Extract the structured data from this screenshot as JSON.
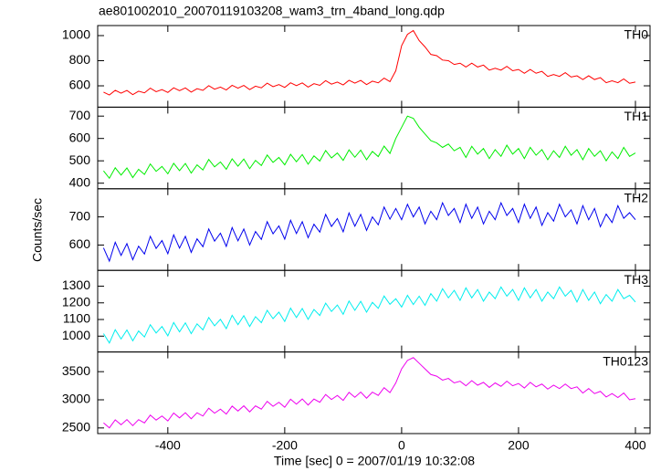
{
  "chart_data": [
    {
      "type": "line",
      "title": "ae801002010_20070119103208_wam3_trn_4band_long.qdp",
      "y_label": "Counts/sec",
      "x": [
        -510,
        -500,
        -490,
        -480,
        -470,
        -460,
        -450,
        -440,
        -430,
        -420,
        -410,
        -400,
        -390,
        -380,
        -370,
        -360,
        -350,
        -340,
        -330,
        -320,
        -310,
        -300,
        -290,
        -280,
        -270,
        -260,
        -250,
        -240,
        -230,
        -220,
        -210,
        -200,
        -190,
        -180,
        -170,
        -160,
        -150,
        -140,
        -130,
        -120,
        -110,
        -100,
        -90,
        -80,
        -70,
        -60,
        -50,
        -40,
        -30,
        -20,
        -10,
        0,
        10,
        20,
        30,
        40,
        50,
        60,
        70,
        80,
        90,
        100,
        110,
        120,
        130,
        140,
        150,
        160,
        170,
        180,
        190,
        200,
        210,
        220,
        230,
        240,
        250,
        260,
        270,
        280,
        290,
        300,
        310,
        320,
        330,
        340,
        350,
        360,
        370,
        380,
        390,
        400
      ],
      "ylim": [
        430,
        1080
      ],
      "yticks": [
        600,
        800,
        1000
      ],
      "series": [
        {
          "name": "TH0",
          "color": "#ff0000",
          "values": [
            550,
            527,
            564,
            541,
            563,
            530,
            557,
            544,
            581,
            553,
            570,
            547,
            584,
            561,
            583,
            550,
            577,
            564,
            601,
            573,
            590,
            567,
            604,
            581,
            603,
            570,
            597,
            584,
            621,
            593,
            610,
            587,
            624,
            601,
            623,
            590,
            617,
            604,
            641,
            613,
            630,
            607,
            644,
            621,
            643,
            610,
            637,
            624,
            661,
            633,
            720,
            920,
            1010,
            1040,
            960,
            910,
            850,
            840,
            805,
            800,
            770,
            780,
            750,
            780,
            750,
            765,
            725,
            740,
            725,
            755,
            720,
            730,
            700,
            730,
            700,
            715,
            675,
            690,
            675,
            705,
            670,
            680,
            650,
            680,
            650,
            665,
            625,
            640,
            625,
            655,
            620,
            630
          ]
        }
      ]
    },
    {
      "type": "line",
      "ylim": [
        375,
        740
      ],
      "yticks": [
        400,
        500,
        600,
        700
      ],
      "series": [
        {
          "name": "TH1",
          "color": "#00ee00",
          "values": [
            455,
            422,
            469,
            436,
            468,
            425,
            462,
            439,
            486,
            453,
            475,
            442,
            489,
            456,
            488,
            445,
            482,
            459,
            506,
            473,
            495,
            462,
            509,
            476,
            508,
            465,
            502,
            479,
            526,
            493,
            515,
            482,
            529,
            496,
            528,
            485,
            522,
            499,
            546,
            513,
            535,
            502,
            549,
            516,
            548,
            505,
            542,
            519,
            566,
            533,
            600,
            650,
            700,
            690,
            650,
            620,
            590,
            580,
            560,
            575,
            545,
            560,
            515,
            565,
            530,
            555,
            510,
            550,
            520,
            570,
            530,
            555,
            510,
            560,
            525,
            550,
            505,
            545,
            515,
            565,
            525,
            550,
            505,
            555,
            520,
            545,
            500,
            540,
            510,
            560,
            520,
            535
          ]
        }
      ]
    },
    {
      "type": "line",
      "ylim": [
        510,
        800
      ],
      "yticks": [
        600,
        700
      ],
      "series": [
        {
          "name": "TH2",
          "color": "#0000ee",
          "values": [
            590,
            543,
            610,
            563,
            605,
            548,
            596,
            568,
            631,
            588,
            616,
            569,
            636,
            589,
            631,
            574,
            622,
            594,
            657,
            614,
            642,
            595,
            662,
            615,
            657,
            600,
            648,
            620,
            683,
            640,
            668,
            621,
            688,
            641,
            683,
            626,
            674,
            646,
            709,
            666,
            694,
            647,
            714,
            667,
            709,
            652,
            700,
            672,
            735,
            692,
            730,
            690,
            745,
            700,
            735,
            675,
            720,
            690,
            750,
            705,
            730,
            680,
            745,
            695,
            735,
            675,
            720,
            690,
            750,
            705,
            730,
            680,
            745,
            695,
            735,
            670,
            715,
            685,
            745,
            700,
            725,
            675,
            740,
            690,
            730,
            665,
            710,
            680,
            740,
            695,
            715,
            690
          ]
        }
      ]
    },
    {
      "type": "line",
      "ylim": [
        905,
        1395
      ],
      "yticks": [
        1000,
        1100,
        1200,
        1300
      ],
      "series": [
        {
          "name": "TH3",
          "color": "#00eeee",
          "values": [
            1015,
            959,
            1039,
            983,
            1037,
            972,
            1031,
            995,
            1069,
            1019,
            1058,
            1002,
            1082,
            1026,
            1080,
            1015,
            1074,
            1038,
            1112,
            1062,
            1101,
            1045,
            1125,
            1069,
            1123,
            1058,
            1117,
            1081,
            1155,
            1105,
            1144,
            1088,
            1168,
            1112,
            1166,
            1101,
            1160,
            1124,
            1198,
            1148,
            1187,
            1131,
            1211,
            1155,
            1209,
            1144,
            1203,
            1167,
            1241,
            1191,
            1225,
            1175,
            1245,
            1190,
            1240,
            1185,
            1255,
            1210,
            1285,
            1230,
            1275,
            1215,
            1290,
            1230,
            1280,
            1210,
            1265,
            1225,
            1295,
            1240,
            1280,
            1215,
            1290,
            1230,
            1280,
            1210,
            1265,
            1225,
            1295,
            1240,
            1275,
            1205,
            1280,
            1215,
            1265,
            1195,
            1250,
            1210,
            1280,
            1225,
            1245,
            1205
          ]
        }
      ]
    },
    {
      "type": "line",
      "ylim": [
        2400,
        3850
      ],
      "yticks": [
        2500,
        3000,
        3500
      ],
      "xlim": [
        -520,
        425
      ],
      "xticks": [
        -400,
        -200,
        0,
        200,
        400
      ],
      "x_label": "Time [sec] 0 = 2007/01/19 10:32:08",
      "series": [
        {
          "name": "TH0123",
          "color": "#ee00ee",
          "values": [
            2590,
            2502,
            2644,
            2557,
            2649,
            2541,
            2648,
            2590,
            2728,
            2640,
            2712,
            2624,
            2766,
            2679,
            2771,
            2663,
            2770,
            2712,
            2850,
            2762,
            2834,
            2746,
            2888,
            2801,
            2893,
            2785,
            2892,
            2834,
            2972,
            2884,
            2956,
            2868,
            3010,
            2923,
            3015,
            2907,
            3014,
            2956,
            3094,
            3006,
            3078,
            2990,
            3132,
            3045,
            3137,
            3029,
            3136,
            3078,
            3216,
            3128,
            3300,
            3550,
            3700,
            3750,
            3650,
            3550,
            3450,
            3420,
            3350,
            3380,
            3300,
            3330,
            3250,
            3340,
            3260,
            3310,
            3220,
            3300,
            3240,
            3330,
            3250,
            3290,
            3210,
            3310,
            3230,
            3280,
            3190,
            3260,
            3200,
            3280,
            3200,
            3230,
            3120,
            3200,
            3110,
            3150,
            3050,
            3110,
            3040,
            3120,
            3000,
            3020
          ]
        }
      ]
    }
  ]
}
